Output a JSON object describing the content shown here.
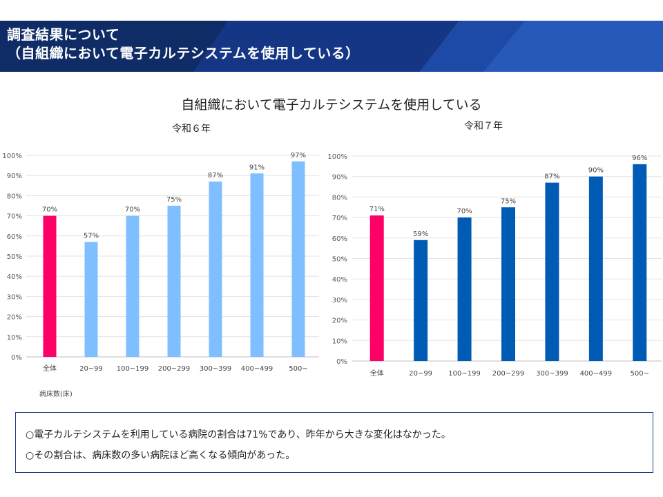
{
  "header": {
    "title_line1": "調査結果について",
    "title_line2": "（自組織において電子カルテシステムを使用している）",
    "colors": {
      "dark": "#0f2c66",
      "mid": "#1c4aa6",
      "light": "#3b72d2"
    }
  },
  "main_title": "自組織において電子カルテシステムを使用している",
  "x_unit_label": "病床数(床)",
  "summary": {
    "line1": "○電子カルテシステムを利用している病院の割合は71%であり、昨年から大きな変化はなかった。",
    "line2": "○その割合は、病床数の多い病院ほど高くなる傾向があった。"
  },
  "chart_data": [
    {
      "type": "bar",
      "title": "令和６年",
      "categories": [
        "全体",
        "20~99",
        "100~199",
        "200~299",
        "300~399",
        "400~499",
        "500~"
      ],
      "values": [
        70,
        57,
        70,
        75,
        87,
        91,
        97
      ],
      "data_labels": [
        "70%",
        "57%",
        "70%",
        "75%",
        "87%",
        "91%",
        "97%"
      ],
      "y_ticks": [
        "0%",
        "10%",
        "20%",
        "30%",
        "40%",
        "50%",
        "60%",
        "70%",
        "80%",
        "90%",
        "100%"
      ],
      "ylim": [
        0,
        100
      ],
      "grid": true,
      "colors": {
        "highlight": "#ff0066",
        "bars": "#7fbfff"
      }
    },
    {
      "type": "bar",
      "title": "令和７年",
      "categories": [
        "全体",
        "20~99",
        "100~199",
        "200~299",
        "300~399",
        "400~499",
        "500~"
      ],
      "values": [
        71,
        59,
        70,
        75,
        87,
        90,
        96
      ],
      "data_labels": [
        "71%",
        "59%",
        "70%",
        "75%",
        "87%",
        "90%",
        "96%"
      ],
      "y_ticks": [
        "0%",
        "10%",
        "20%",
        "30%",
        "40%",
        "50%",
        "60%",
        "70%",
        "80%",
        "90%",
        "100%"
      ],
      "ylim": [
        0,
        100
      ],
      "grid": true,
      "colors": {
        "highlight": "#ff0066",
        "bars": "#005bb5"
      }
    }
  ]
}
